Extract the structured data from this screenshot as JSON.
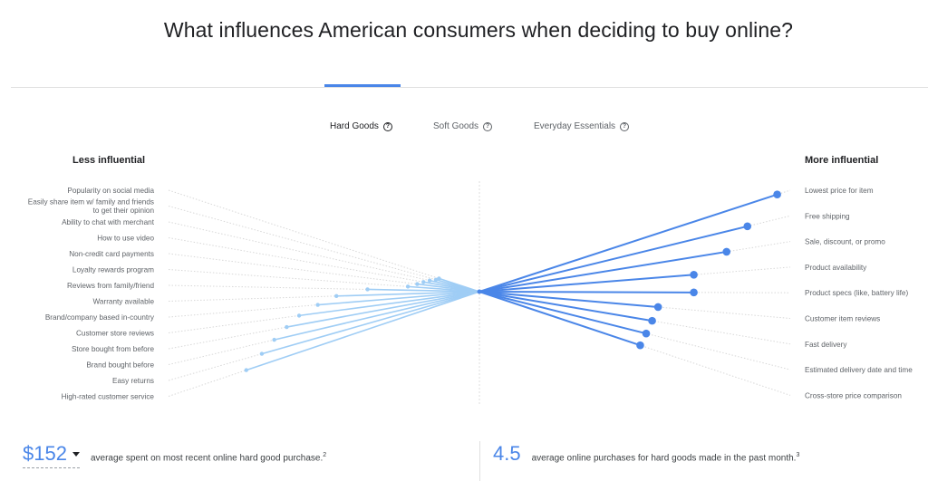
{
  "title": "What influences American consumers when deciding to buy online?",
  "tabs": [
    {
      "label": "Hard Goods",
      "active": true
    },
    {
      "label": "Soft Goods",
      "active": false
    },
    {
      "label": "Everyday Essentials",
      "active": false
    }
  ],
  "colors": {
    "accent": "#4a86e8",
    "less_dots": "#9fcdf5",
    "grid": "#d8d8d8"
  },
  "chart_data": {
    "type": "scatter",
    "title": "",
    "less_heading": "Less influential",
    "more_heading": "More influential",
    "less_influential": [
      {
        "label": "Popularity on social media",
        "value": 0.13
      },
      {
        "label": "Easily share item w/ family and friends\nto get their opinion",
        "value": 0.14
      },
      {
        "label": "Ability to chat with merchant",
        "value": 0.16
      },
      {
        "label": "How to use video",
        "value": 0.18
      },
      {
        "label": "Non-credit card payments",
        "value": 0.2
      },
      {
        "label": "Loyalty rewards program",
        "value": 0.23
      },
      {
        "label": "Reviews from family/friend",
        "value": 0.36
      },
      {
        "label": "Warranty available",
        "value": 0.46
      },
      {
        "label": "Brand/company based in-country",
        "value": 0.52
      },
      {
        "label": "Customer store reviews",
        "value": 0.58
      },
      {
        "label": "Store bought from before",
        "value": 0.62
      },
      {
        "label": "Brand bought before",
        "value": 0.66
      },
      {
        "label": "Easy returns",
        "value": 0.7
      },
      {
        "label": "High-rated customer service",
        "value": 0.75
      }
    ],
    "more_influential": [
      {
        "label": "Lowest price for item",
        "value": 1.0
      },
      {
        "label": "Free shipping",
        "value": 0.9
      },
      {
        "label": "Sale, discount, or promo",
        "value": 0.83
      },
      {
        "label": "Product availability",
        "value": 0.72
      },
      {
        "label": "Product specs (like, battery life)",
        "value": 0.72
      },
      {
        "label": "Customer item reviews",
        "value": 0.6
      },
      {
        "label": "Fast delivery",
        "value": 0.58
      },
      {
        "label": "Estimated delivery date and time",
        "value": 0.56
      },
      {
        "label": "Cross-store price comparison",
        "value": 0.54
      }
    ]
  },
  "stats": {
    "left": {
      "value": "$152",
      "text": "average spent on most recent online hard good purchase.",
      "footnote": "2"
    },
    "right": {
      "value": "4.5",
      "text": "average online purchases for hard goods made in the past month.",
      "footnote": "3"
    }
  }
}
